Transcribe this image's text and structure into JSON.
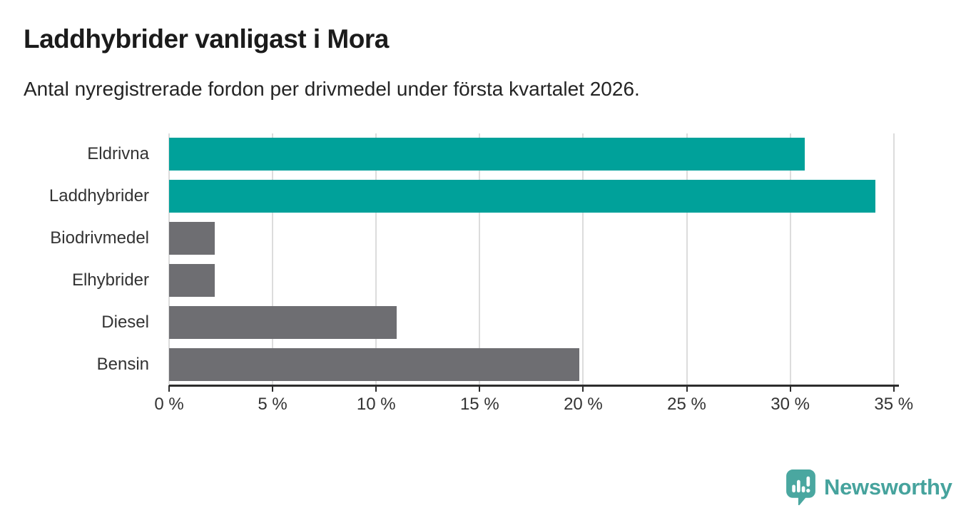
{
  "chart_data": {
    "type": "bar",
    "orientation": "horizontal",
    "title": "Laddhybrider vanligast i Mora",
    "subtitle": "Antal nyregistrerade fordon per drivmedel under första kvartalet 2026.",
    "categories": [
      "Eldrivna",
      "Laddhybrider",
      "Biodrivmedel",
      "Elhybrider",
      "Diesel",
      "Bensin"
    ],
    "values": [
      30.7,
      34.1,
      2.2,
      2.2,
      11.0,
      19.8
    ],
    "unit": "%",
    "bar_colors": [
      "#00a19a",
      "#00a19a",
      "#6e6e72",
      "#6e6e72",
      "#6e6e72",
      "#6e6e72"
    ],
    "xlabel": "",
    "ylabel": "",
    "x_ticks": [
      0,
      5,
      10,
      15,
      20,
      25,
      30,
      35
    ],
    "x_tick_labels": [
      "0 %",
      "5 %",
      "10 %",
      "15 %",
      "20 %",
      "25 %",
      "30 %",
      "35 %"
    ],
    "xlim": [
      0,
      35.25
    ],
    "grid": true,
    "legend": false
  },
  "colors": {
    "accent_teal": "#00a19a",
    "muted_gray": "#6e6e72",
    "gridline": "#dcdcdc",
    "axis": "#2d2d2d",
    "title_text": "#1b1b1b",
    "body_text": "#333333",
    "brand_teal": "#46a39d"
  },
  "footer": {
    "brand": "Newsworthy",
    "logo_icon": "newsworthy-speech-bubble-bar-chart-icon"
  }
}
